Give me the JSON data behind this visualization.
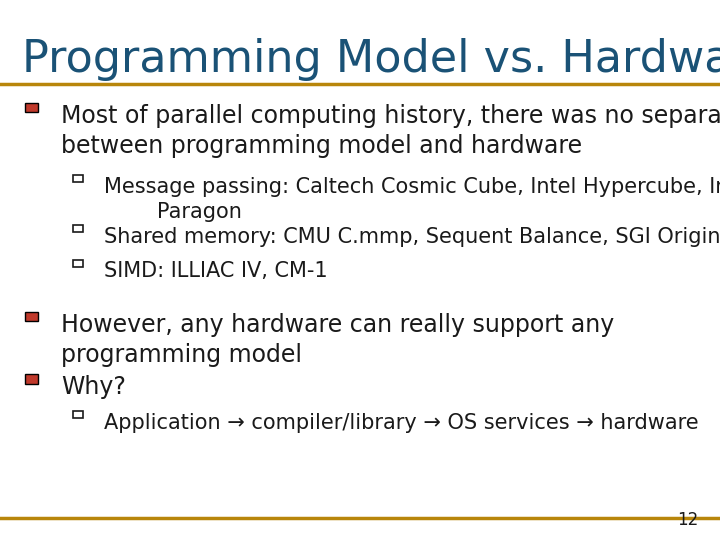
{
  "title": "Programming Model vs. Hardware",
  "title_color": "#1a5276",
  "title_fontsize": 32,
  "background_color": "#ffffff",
  "line_color": "#b8860b",
  "text_color": "#1a1a1a",
  "bullet_color": "#c0392b",
  "slide_number": "12",
  "bullet1_main": "Most of parallel computing history, there was no separation\nbetween programming model and hardware",
  "bullet1_sub1": "Message passing: Caltech Cosmic Cube, Intel Hypercube, Intel\n        Paragon",
  "bullet1_sub2": "Shared memory: CMU C.mmp, Sequent Balance, SGI Origin.",
  "bullet1_sub3": "SIMD: ILLIAC IV, CM-1",
  "bullet2_main": "However, any hardware can really support any\nprogramming model",
  "bullet3_main": "Why?",
  "bullet3_sub1": "Application → compiler/library → OS services → hardware",
  "main_fontsize": 17,
  "sub_fontsize": 15
}
